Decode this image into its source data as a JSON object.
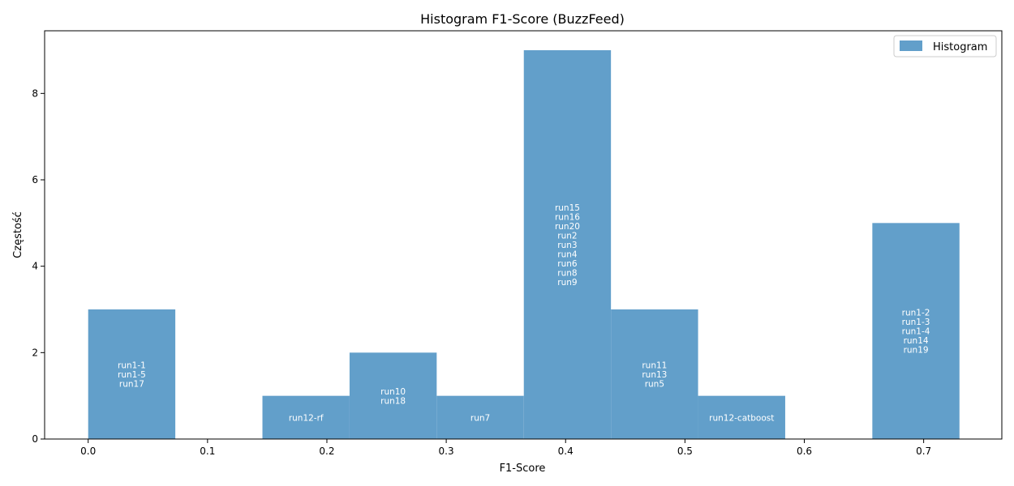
{
  "chart_data": {
    "type": "bar",
    "title": "Histogram F1-Score (BuzzFeed)",
    "xlabel": "F1-Score",
    "ylabel": "Częstość",
    "xlim": [
      -0.0365,
      0.7655
    ],
    "ylim": [
      0,
      9.45
    ],
    "x_ticks": [
      "0.0",
      "0.1",
      "0.2",
      "0.3",
      "0.4",
      "0.5",
      "0.6",
      "0.7"
    ],
    "y_ticks": [
      "0",
      "2",
      "4",
      "6",
      "8"
    ],
    "legend": {
      "label": "Histogram",
      "position": "top-right"
    },
    "color": "#629fca",
    "grid": false,
    "bins": [
      {
        "x0": 0.0,
        "x1": 0.073,
        "count": 3,
        "labels": [
          "run1-1",
          "run1-5",
          "run17"
        ]
      },
      {
        "x0": 0.073,
        "x1": 0.146,
        "count": 0,
        "labels": []
      },
      {
        "x0": 0.146,
        "x1": 0.219,
        "count": 1,
        "labels": [
          "run12-rf"
        ]
      },
      {
        "x0": 0.219,
        "x1": 0.292,
        "count": 2,
        "labels": [
          "run10",
          "run18"
        ]
      },
      {
        "x0": 0.292,
        "x1": 0.365,
        "count": 1,
        "labels": [
          "run7"
        ]
      },
      {
        "x0": 0.365,
        "x1": 0.438,
        "count": 9,
        "labels": [
          "run15",
          "run16",
          "run20",
          "run2",
          "run3",
          "run4",
          "run6",
          "run8",
          "run9"
        ]
      },
      {
        "x0": 0.438,
        "x1": 0.511,
        "count": 3,
        "labels": [
          "run11",
          "run13",
          "run5"
        ]
      },
      {
        "x0": 0.511,
        "x1": 0.584,
        "count": 1,
        "labels": [
          "run12-catboost"
        ]
      },
      {
        "x0": 0.584,
        "x1": 0.657,
        "count": 0,
        "labels": []
      },
      {
        "x0": 0.657,
        "x1": 0.73,
        "count": 5,
        "labels": [
          "run1-2",
          "run1-3",
          "run1-4",
          "run14",
          "run19"
        ]
      }
    ]
  }
}
